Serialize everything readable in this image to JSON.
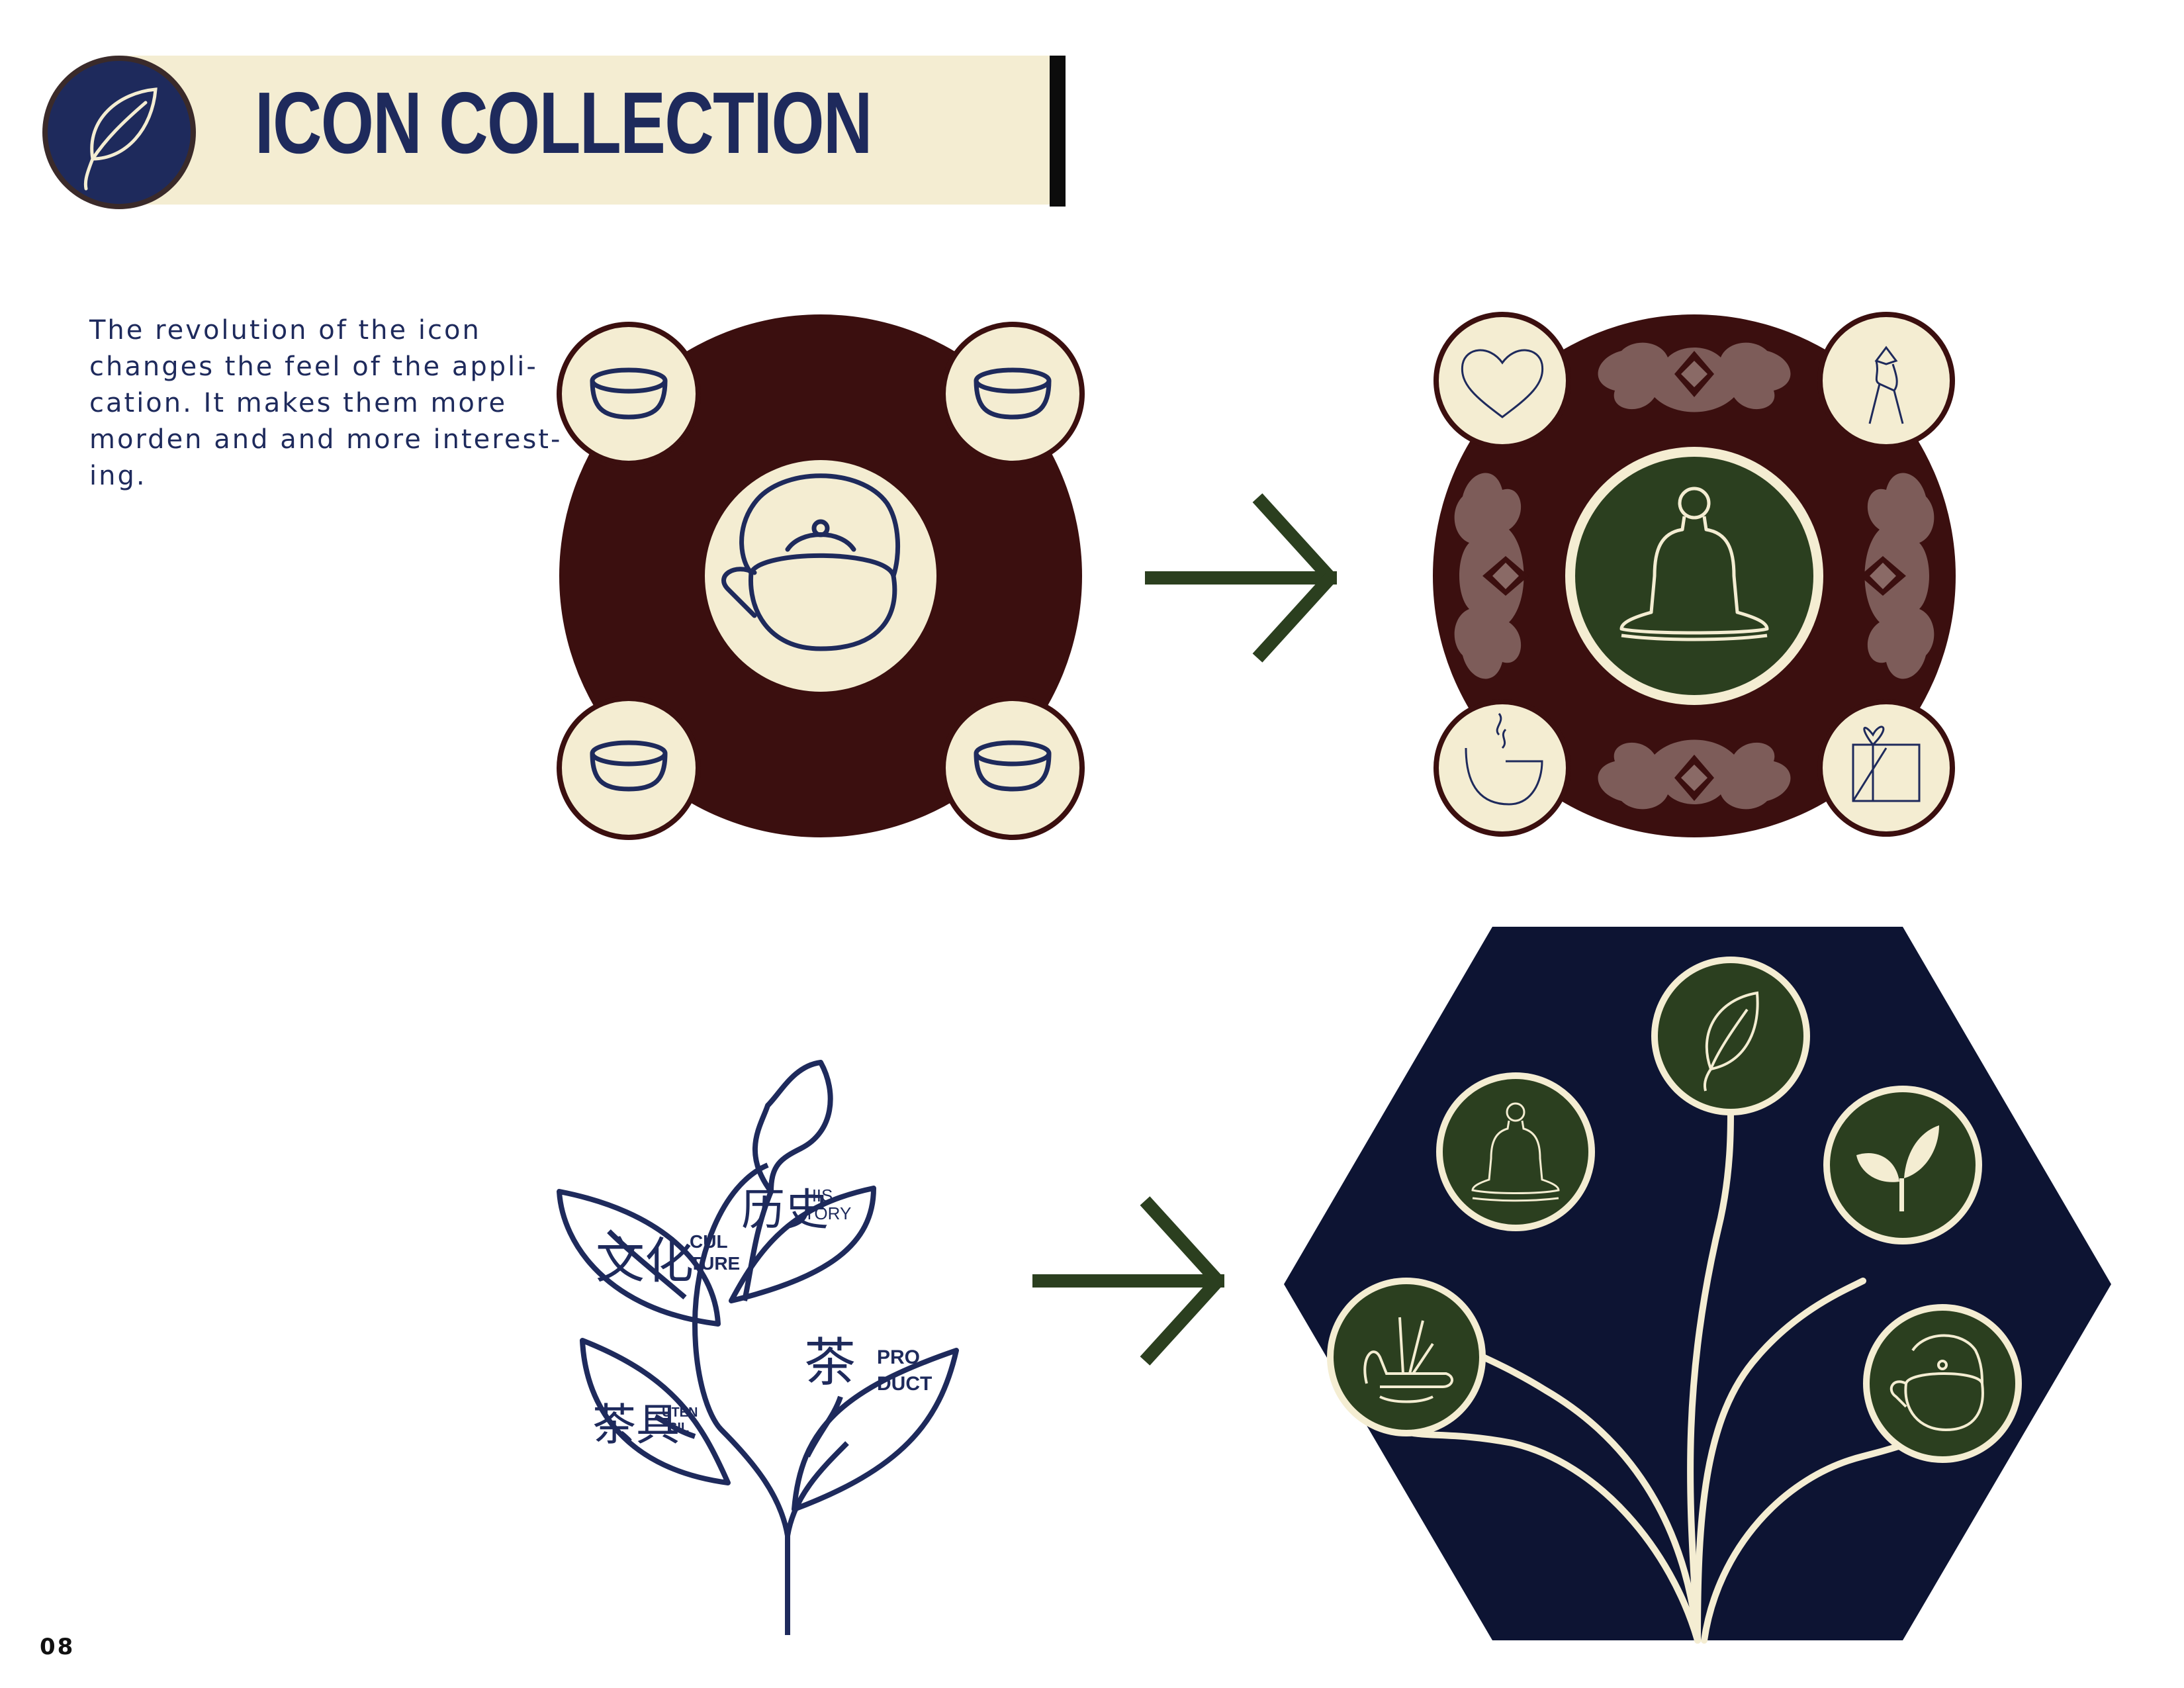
{
  "header": {
    "title": "ICON COLLECTION",
    "logo_icon": "leaf-icon",
    "colors": {
      "band": "#F4EDD2",
      "title": "#1E2A5C",
      "badge": "#1E2A5C"
    }
  },
  "intro": {
    "lines": [
      "The revolution of the icon",
      "changes the feel of the appli-",
      "cation. It makes them more",
      "morden and and more interest-",
      "ing."
    ]
  },
  "tree_labels": {
    "culture": {
      "cn": "文化",
      "en_top": "CUL",
      "en_bottom": "TURE"
    },
    "history": {
      "cn": "历史",
      "en_top": "HIS",
      "en_bottom": "TORY"
    },
    "product": {
      "cn": "茶",
      "en_top": "PRO",
      "en_bottom": "DUCT"
    },
    "utensil": {
      "cn": "茶具",
      "en_top": "UTEN",
      "en_bottom": "SIL"
    }
  },
  "icons": {
    "old_cluster": [
      "tea-cup-icon",
      "tea-cup-icon",
      "teapot-icon",
      "tea-cup-icon",
      "tea-cup-icon"
    ],
    "new_cluster": [
      "heart-icon",
      "figure-icon",
      "meditation-icon",
      "steaming-cup-icon",
      "gift-icon"
    ],
    "hex_tree": [
      "leaf-icon",
      "meditation-icon",
      "sprout-icon",
      "incense-icon",
      "teapot-icon"
    ]
  },
  "colors": {
    "maroon": "#3B0F0F",
    "cream": "#F4EDD2",
    "navy": "#1E2A5C",
    "dark_navy": "#0D1433",
    "forest": "#2B3F1F",
    "mauve": "#8A6A66"
  },
  "page_number": "08"
}
